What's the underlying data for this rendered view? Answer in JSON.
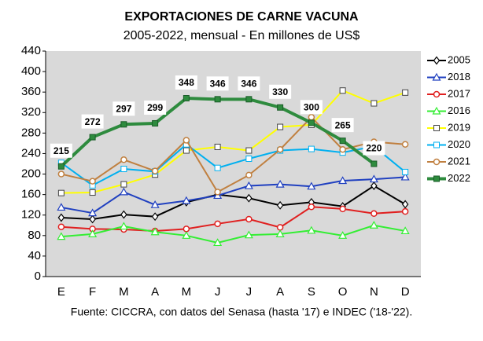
{
  "chart_data": {
    "type": "line",
    "title": "EXPORTACIONES DE CARNE VACUNA",
    "subtitle": "2005-2022, mensual - En millones de US$",
    "source": "Fuente: CICCRA, con datos del Senasa (hasta '17) e INDEC ('18-'22).",
    "categories": [
      "E",
      "F",
      "M",
      "A",
      "M",
      "J",
      "J",
      "A",
      "S",
      "O",
      "N",
      "D"
    ],
    "ylim": [
      0,
      440
    ],
    "yticks": [
      0,
      40,
      80,
      120,
      160,
      200,
      240,
      280,
      320,
      360,
      400,
      440
    ],
    "grid": false,
    "legend": "right",
    "series": [
      {
        "name": "2005",
        "color": "#000000",
        "marker": "diamond",
        "values": [
          115,
          112,
          121,
          117,
          145,
          160,
          153,
          139,
          145,
          137,
          177,
          141
        ]
      },
      {
        "name": "2018",
        "color": "#2040c0",
        "marker": "triangle",
        "values": [
          135,
          124,
          165,
          140,
          148,
          158,
          177,
          180,
          176,
          187,
          190,
          194
        ]
      },
      {
        "name": "2017",
        "color": "#e02020",
        "marker": "circle",
        "values": [
          97,
          93,
          92,
          89,
          93,
          103,
          112,
          96,
          136,
          132,
          123,
          127
        ]
      },
      {
        "name": "2016",
        "color": "#33ee33",
        "marker": "triangle",
        "values": [
          78,
          83,
          98,
          87,
          80,
          66,
          81,
          83,
          90,
          80,
          100,
          89
        ]
      },
      {
        "name": "2019",
        "color": "#ffff00",
        "marker": "square",
        "values": [
          163,
          164,
          180,
          199,
          246,
          253,
          246,
          292,
          296,
          363,
          338,
          359
        ]
      },
      {
        "name": "2020",
        "color": "#00b0f0",
        "marker": "square",
        "values": [
          222,
          178,
          210,
          205,
          258,
          212,
          230,
          246,
          249,
          242,
          254,
          204
        ]
      },
      {
        "name": "2021",
        "color": "#c08040",
        "marker": "circle",
        "values": [
          200,
          186,
          228,
          206,
          266,
          165,
          198,
          248,
          311,
          248,
          263,
          258
        ]
      },
      {
        "name": "2022",
        "color": "#2e8b3e",
        "marker": "square",
        "data_labels": true,
        "values": [
          215,
          272,
          297,
          299,
          348,
          346,
          346,
          330,
          300,
          265,
          220,
          null
        ]
      }
    ]
  }
}
